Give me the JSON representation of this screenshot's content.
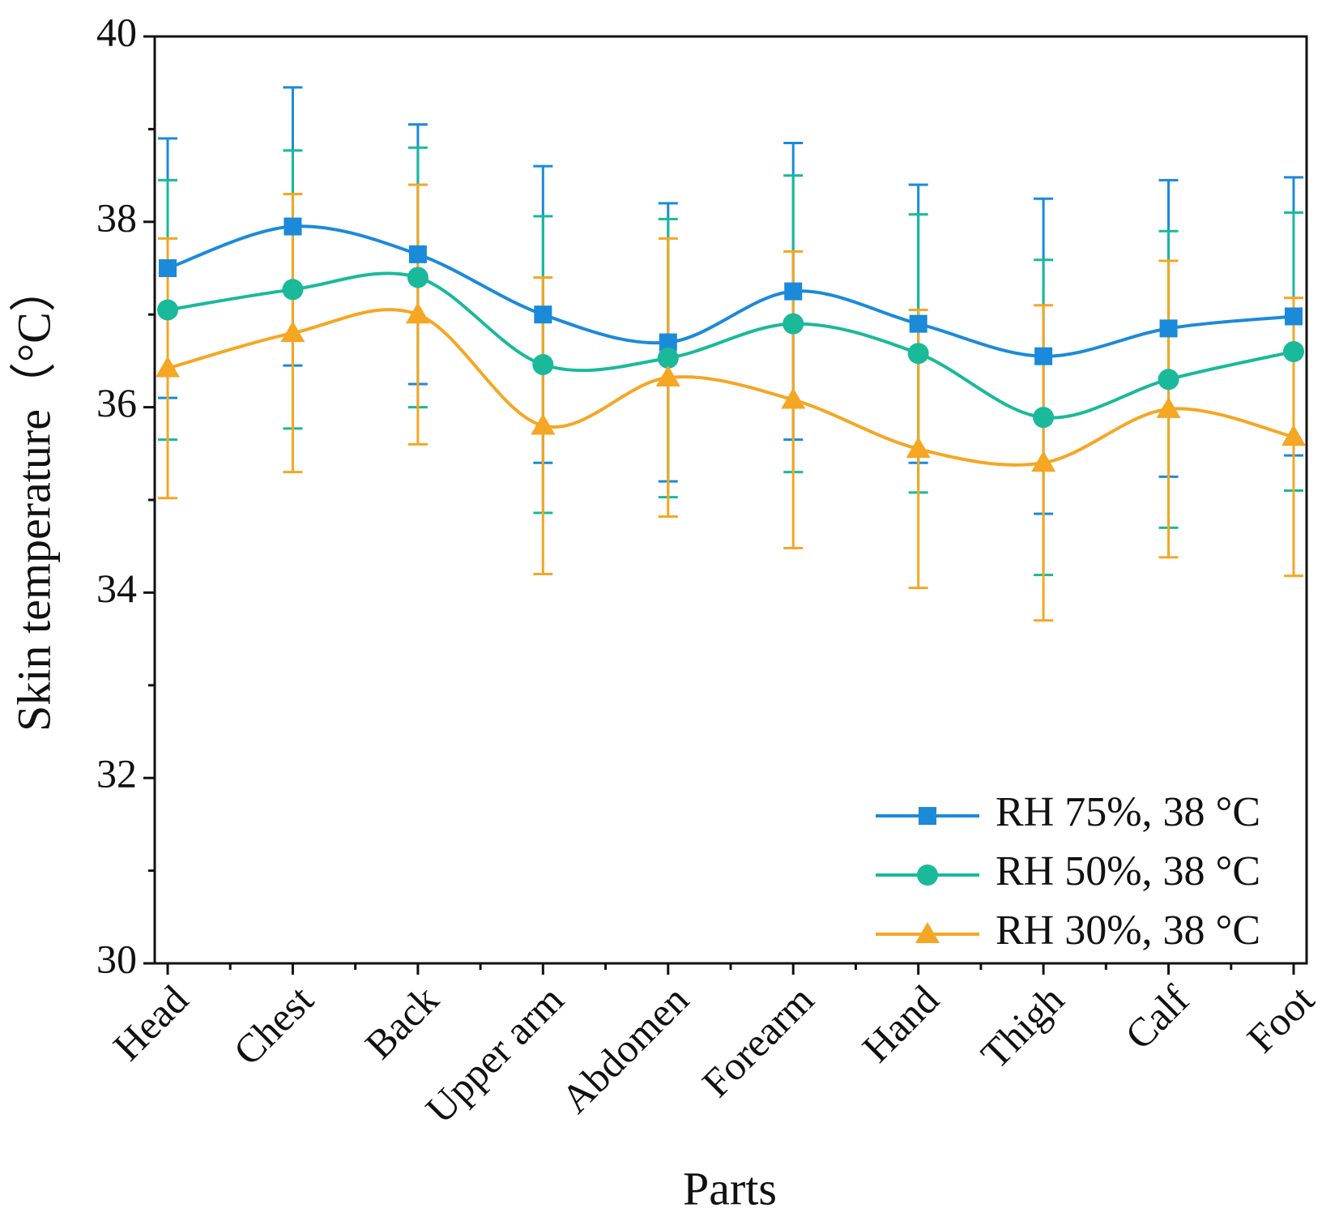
{
  "chart_data": {
    "type": "line",
    "categories": [
      "Head",
      "Chest",
      "Back",
      "Upper arm",
      "Abdomen",
      "Forearm",
      "Hand",
      "Thigh",
      "Calf",
      "Foot"
    ],
    "series": [
      {
        "name": "RH 75%, 38 °C",
        "color": "#1b8ad9",
        "marker": "square",
        "values": [
          37.5,
          37.95,
          37.65,
          37.0,
          36.7,
          37.25,
          36.9,
          36.55,
          36.85,
          36.98
        ],
        "errors": [
          1.4,
          1.5,
          1.4,
          1.6,
          1.5,
          1.6,
          1.5,
          1.7,
          1.6,
          1.5
        ]
      },
      {
        "name": "RH 50%, 38 °C",
        "color": "#1ab99a",
        "marker": "circle",
        "values": [
          37.05,
          37.27,
          37.4,
          36.46,
          36.53,
          36.9,
          36.58,
          35.89,
          36.3,
          36.6
        ],
        "errors": [
          1.4,
          1.5,
          1.4,
          1.6,
          1.5,
          1.6,
          1.5,
          1.7,
          1.6,
          1.5
        ]
      },
      {
        "name": "RH 30%, 38 °C",
        "color": "#f5a623",
        "marker": "triangle",
        "values": [
          36.42,
          36.8,
          37.0,
          35.8,
          36.32,
          36.08,
          35.55,
          35.4,
          35.98,
          35.68
        ],
        "errors": [
          1.4,
          1.5,
          1.4,
          1.6,
          1.5,
          1.6,
          1.5,
          1.7,
          1.6,
          1.5
        ]
      }
    ],
    "x_label": "Parts",
    "y_label": "Skin temperature（°C）",
    "ylim": [
      30,
      40
    ],
    "yticks": [
      30,
      32,
      34,
      36,
      38,
      40
    ],
    "smooth": true,
    "legend": "lower right"
  }
}
